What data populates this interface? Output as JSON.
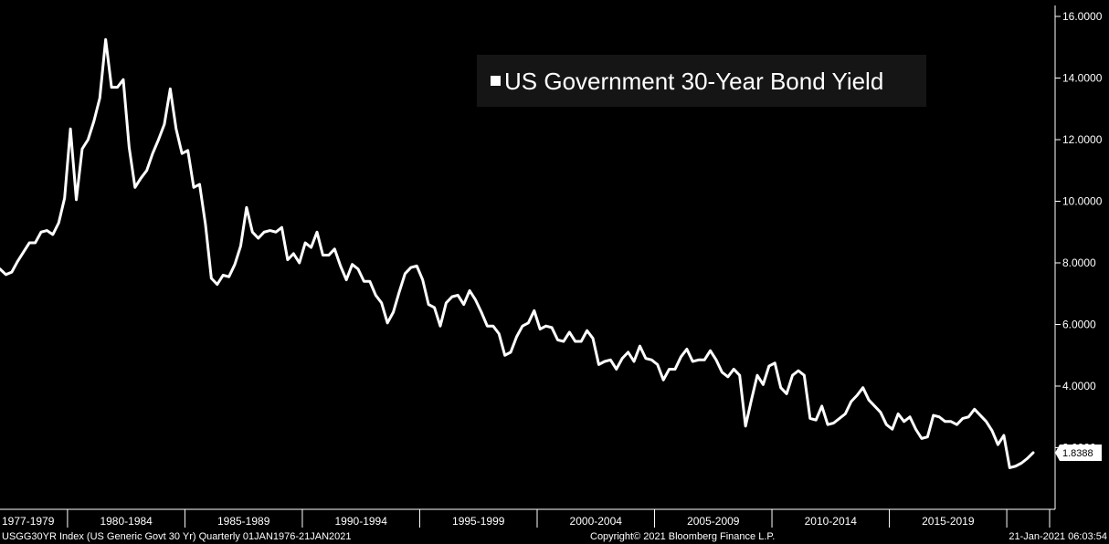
{
  "chart_data": {
    "type": "line",
    "title": "",
    "xlabel": "",
    "ylabel": "",
    "legend": {
      "position": "top-right",
      "entries": [
        "US Government 30-Year Bond Yield"
      ]
    },
    "x_tick_labels": [
      "1977-1979",
      "1980-1984",
      "1985-1989",
      "1990-1994",
      "1995-1999",
      "2000-2004",
      "2005-2009",
      "2010-2014",
      "2015-2019"
    ],
    "y_ticks": [
      "16.0000",
      "14.0000",
      "12.0000",
      "10.0000",
      "8.0000",
      "6.0000",
      "4.0000",
      "2.0000"
    ],
    "ylim": [
      0,
      16
    ],
    "grid": false,
    "last_value_label": "1.8388",
    "series": [
      {
        "name": "US Government 30-Year Bond Yield",
        "color": "#ffffff",
        "x": [
          "1977-Q1",
          "1977-Q2",
          "1977-Q3",
          "1977-Q4",
          "1978-Q1",
          "1978-Q2",
          "1978-Q3",
          "1978-Q4",
          "1979-Q1",
          "1979-Q2",
          "1979-Q3",
          "1979-Q4",
          "1980-Q1",
          "1980-Q2",
          "1980-Q3",
          "1980-Q4",
          "1981-Q1",
          "1981-Q2",
          "1981-Q3",
          "1981-Q4",
          "1982-Q1",
          "1982-Q2",
          "1982-Q3",
          "1982-Q4",
          "1983-Q1",
          "1983-Q2",
          "1983-Q3",
          "1983-Q4",
          "1984-Q1",
          "1984-Q2",
          "1984-Q3",
          "1984-Q4",
          "1985-Q1",
          "1985-Q2",
          "1985-Q3",
          "1985-Q4",
          "1986-Q1",
          "1986-Q2",
          "1986-Q3",
          "1986-Q4",
          "1987-Q1",
          "1987-Q2",
          "1987-Q3",
          "1987-Q4",
          "1988-Q1",
          "1988-Q2",
          "1988-Q3",
          "1988-Q4",
          "1989-Q1",
          "1989-Q2",
          "1989-Q3",
          "1989-Q4",
          "1990-Q1",
          "1990-Q2",
          "1990-Q3",
          "1990-Q4",
          "1991-Q1",
          "1991-Q2",
          "1991-Q3",
          "1991-Q4",
          "1992-Q1",
          "1992-Q2",
          "1992-Q3",
          "1992-Q4",
          "1993-Q1",
          "1993-Q2",
          "1993-Q3",
          "1993-Q4",
          "1994-Q1",
          "1994-Q2",
          "1994-Q3",
          "1994-Q4",
          "1995-Q1",
          "1995-Q2",
          "1995-Q3",
          "1995-Q4",
          "1996-Q1",
          "1996-Q2",
          "1996-Q3",
          "1996-Q4",
          "1997-Q1",
          "1997-Q2",
          "1997-Q3",
          "1997-Q4",
          "1998-Q1",
          "1998-Q2",
          "1998-Q3",
          "1998-Q4",
          "1999-Q1",
          "1999-Q2",
          "1999-Q3",
          "1999-Q4",
          "2000-Q1",
          "2000-Q2",
          "2000-Q3",
          "2000-Q4",
          "2001-Q1",
          "2001-Q2",
          "2001-Q3",
          "2001-Q4",
          "2002-Q1",
          "2002-Q2",
          "2002-Q3",
          "2002-Q4",
          "2003-Q1",
          "2003-Q2",
          "2003-Q3",
          "2003-Q4",
          "2004-Q1",
          "2004-Q2",
          "2004-Q3",
          "2004-Q4",
          "2005-Q1",
          "2005-Q2",
          "2005-Q3",
          "2005-Q4",
          "2006-Q1",
          "2006-Q2",
          "2006-Q3",
          "2006-Q4",
          "2007-Q1",
          "2007-Q2",
          "2007-Q3",
          "2007-Q4",
          "2008-Q1",
          "2008-Q2",
          "2008-Q3",
          "2008-Q4",
          "2009-Q1",
          "2009-Q2",
          "2009-Q3",
          "2009-Q4",
          "2010-Q1",
          "2010-Q2",
          "2010-Q3",
          "2010-Q4",
          "2011-Q1",
          "2011-Q2",
          "2011-Q3",
          "2011-Q4",
          "2012-Q1",
          "2012-Q2",
          "2012-Q3",
          "2012-Q4",
          "2013-Q1",
          "2013-Q2",
          "2013-Q3",
          "2013-Q4",
          "2014-Q1",
          "2014-Q2",
          "2014-Q3",
          "2014-Q4",
          "2015-Q1",
          "2015-Q2",
          "2015-Q3",
          "2015-Q4",
          "2016-Q1",
          "2016-Q2",
          "2016-Q3",
          "2016-Q4",
          "2017-Q1",
          "2017-Q2",
          "2017-Q3",
          "2017-Q4",
          "2018-Q1",
          "2018-Q2",
          "2018-Q3",
          "2018-Q4",
          "2019-Q1",
          "2019-Q2",
          "2019-Q3",
          "2019-Q4",
          "2020-Q1",
          "2020-Q2",
          "2020-Q3",
          "2020-Q4",
          "2021-Q1"
        ],
        "values": [
          7.8,
          7.62,
          7.7,
          8.05,
          8.35,
          8.65,
          8.65,
          9.0,
          9.05,
          8.92,
          9.3,
          10.1,
          12.35,
          10.05,
          11.7,
          12.0,
          12.6,
          13.35,
          15.25,
          13.7,
          13.7,
          13.95,
          11.75,
          10.45,
          10.75,
          11.0,
          11.55,
          12.0,
          12.5,
          13.65,
          12.35,
          11.55,
          11.65,
          10.45,
          10.55,
          9.25,
          7.5,
          7.3,
          7.6,
          7.55,
          7.95,
          8.55,
          9.8,
          9.0,
          8.8,
          9.0,
          9.05,
          9.0,
          9.15,
          8.1,
          8.3,
          8.0,
          8.65,
          8.5,
          9.0,
          8.25,
          8.25,
          8.45,
          7.9,
          7.45,
          7.95,
          7.8,
          7.4,
          7.4,
          6.95,
          6.7,
          6.05,
          6.4,
          7.05,
          7.65,
          7.85,
          7.9,
          7.45,
          6.65,
          6.55,
          5.95,
          6.7,
          6.9,
          6.95,
          6.65,
          7.1,
          6.8,
          6.4,
          5.95,
          5.95,
          5.7,
          5.0,
          5.1,
          5.6,
          5.95,
          6.05,
          6.45,
          5.85,
          5.95,
          5.9,
          5.5,
          5.45,
          5.75,
          5.45,
          5.45,
          5.8,
          5.55,
          4.7,
          4.8,
          4.85,
          4.55,
          4.9,
          5.1,
          4.8,
          5.3,
          4.9,
          4.85,
          4.7,
          4.2,
          4.55,
          4.55,
          4.95,
          5.2,
          4.8,
          4.85,
          4.85,
          5.15,
          4.85,
          4.45,
          4.3,
          4.55,
          4.35,
          2.7,
          3.55,
          4.35,
          4.05,
          4.65,
          4.75,
          3.95,
          3.75,
          4.35,
          4.5,
          4.35,
          2.95,
          2.9,
          3.35,
          2.75,
          2.8,
          2.95,
          3.1,
          3.5,
          3.7,
          3.95,
          3.55,
          3.35,
          3.15,
          2.75,
          2.6,
          3.1,
          2.85,
          3.0,
          2.6,
          2.3,
          2.35,
          3.05,
          3.0,
          2.85,
          2.85,
          2.75,
          2.95,
          3.0,
          3.25,
          3.05,
          2.85,
          2.55,
          2.1,
          2.4,
          1.35,
          1.4,
          1.5,
          1.65,
          1.8388
        ]
      }
    ]
  },
  "footer": {
    "left": "USGG30YR Index (US Generic Govt 30 Yr)  Quarterly 01JAN1976-21JAN2021",
    "center": "Copyright© 2021 Bloomberg Finance L.P.",
    "right": "21-Jan-2021 06:03:54"
  },
  "colors": {
    "background": "#000000",
    "line": "#ffffff",
    "legend_box": "#151515",
    "axis": "#ffffff"
  }
}
